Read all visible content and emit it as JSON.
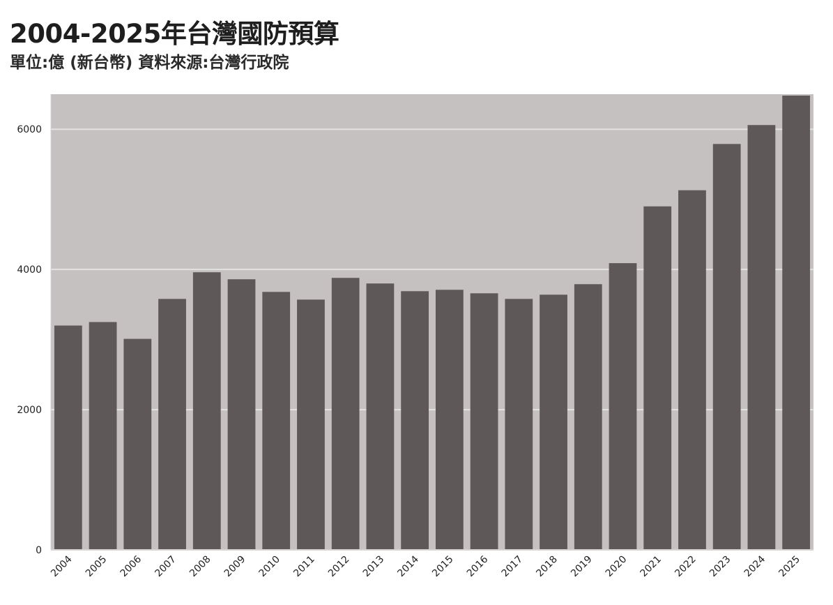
{
  "chart_data": {
    "type": "bar",
    "title": "2004-2025年台灣國防預算",
    "subtitle": "單位:億 (新台幣) 資料來源:台灣行政院",
    "categories": [
      "2004",
      "2005",
      "2006",
      "2007",
      "2008",
      "2009",
      "2010",
      "2011",
      "2012",
      "2013",
      "2014",
      "2015",
      "2016",
      "2017",
      "2018",
      "2019",
      "2020",
      "2021",
      "2022",
      "2023",
      "2024",
      "2025"
    ],
    "values": [
      3200,
      3250,
      3010,
      3580,
      3960,
      3860,
      3680,
      3570,
      3880,
      3800,
      3690,
      3710,
      3660,
      3580,
      3640,
      3790,
      4090,
      4900,
      5130,
      5790,
      6060,
      6480
    ],
    "ylim": [
      0,
      6500
    ],
    "yticks": [
      0,
      2000,
      4000,
      6000
    ],
    "xlabel": "",
    "ylabel": "",
    "grid": true,
    "legend": "none",
    "colors": {
      "bar": "#5f5858",
      "plot_background": "#c6c1c1",
      "gridline": "#e4e1e1",
      "axis": "#d8d4d4"
    }
  }
}
